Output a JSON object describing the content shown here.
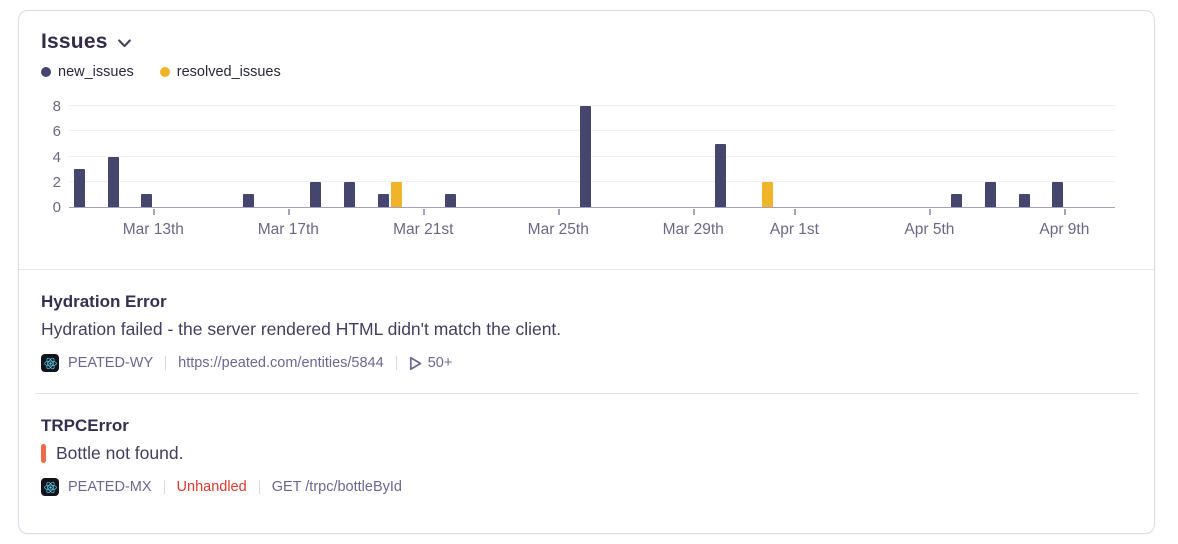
{
  "widget": {
    "title": "Issues",
    "chevron_icon": "chevron-down-icon"
  },
  "chart_data": {
    "type": "bar",
    "title": "Issues",
    "xlabel": "",
    "ylabel": "",
    "ylim": [
      0,
      8
    ],
    "y_ticks": [
      0,
      2,
      4,
      6,
      8
    ],
    "grid": true,
    "legend_position": "top-left",
    "categories": [
      "Mar 11",
      "Mar 12",
      "Mar 13",
      "Mar 14",
      "Mar 15",
      "Mar 16",
      "Mar 17",
      "Mar 18",
      "Mar 19",
      "Mar 20",
      "Mar 21",
      "Mar 22",
      "Mar 23",
      "Mar 24",
      "Mar 25",
      "Mar 26",
      "Mar 27",
      "Mar 28",
      "Mar 29",
      "Mar 30",
      "Mar 31",
      "Apr 1",
      "Apr 2",
      "Apr 3",
      "Apr 4",
      "Apr 5",
      "Apr 6",
      "Apr 7",
      "Apr 8",
      "Apr 9",
      "Apr 10"
    ],
    "series": [
      {
        "name": "new_issues",
        "color": "#45466d",
        "values": [
          3,
          4,
          1,
          0,
          0,
          1,
          0,
          2,
          2,
          1,
          0,
          1,
          0,
          0,
          0,
          8,
          0,
          0,
          0,
          5,
          0,
          0,
          0,
          0,
          0,
          0,
          1,
          2,
          1,
          2,
          0
        ]
      },
      {
        "name": "resolved_issues",
        "color": "#f0b429",
        "values": [
          0,
          0,
          0,
          0,
          0,
          0,
          0,
          0,
          0,
          2,
          0,
          0,
          0,
          0,
          0,
          0,
          0,
          0,
          0,
          0,
          2,
          0,
          0,
          0,
          0,
          0,
          0,
          0,
          0,
          0,
          0
        ]
      }
    ],
    "x_tick_labels": [
      {
        "index": 2,
        "label": "Mar 13th"
      },
      {
        "index": 6,
        "label": "Mar 17th"
      },
      {
        "index": 10,
        "label": "Mar 21st"
      },
      {
        "index": 14,
        "label": "Mar 25th"
      },
      {
        "index": 18,
        "label": "Mar 29th"
      },
      {
        "index": 21,
        "label": "Apr 1st"
      },
      {
        "index": 25,
        "label": "Apr 5th"
      },
      {
        "index": 29,
        "label": "Apr 9th"
      }
    ]
  },
  "issues": [
    {
      "title": "Hydration Error",
      "message": "Hydration failed - the server rendered HTML didn't match the client.",
      "platform_icon": "react-icon",
      "short_id": "PEATED-WY",
      "url": "https://peated.com/entities/5844",
      "replay_count": "50+"
    },
    {
      "title": "TRPCError",
      "message": "Bottle not found.",
      "level_marker_color": "#ec6a45",
      "platform_icon": "react-icon",
      "short_id": "PEATED-MX",
      "handled_tag": "Unhandled",
      "handled_color": "#e0382c",
      "transaction": "GET /trpc/bottleById"
    }
  ]
}
